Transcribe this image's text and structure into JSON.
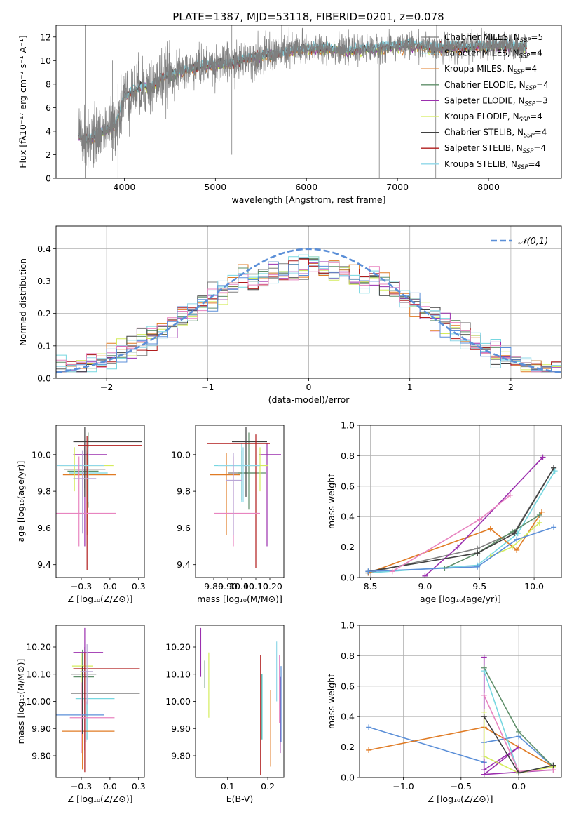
{
  "figure": {
    "suptitle": "PLATE=1387, MJD=53118, FIBERID=0201, z=0.078"
  },
  "models": [
    {
      "name": "Chabrier MILES",
      "nssp": "5",
      "color": "#7f7f7f",
      "lw": 1
    },
    {
      "name": "Salpeter MILES",
      "nssp": "4",
      "color": "#76d7e0",
      "lw": 1
    },
    {
      "name": "Kroupa MILES",
      "nssp": "4",
      "color": "#e07b24",
      "lw": 1
    },
    {
      "name": "Chabrier ELODIE",
      "nssp": "4",
      "color": "#5f8f6a",
      "lw": 1
    },
    {
      "name": "Salpeter ELODIE",
      "nssp": "3",
      "color": "#9b2fae",
      "lw": 1
    },
    {
      "name": "Kroupa ELODIE",
      "nssp": "4",
      "color": "#d4ec5c",
      "lw": 1
    },
    {
      "name": "Chabrier STELIB",
      "nssp": "4",
      "color": "#404040",
      "lw": 1
    },
    {
      "name": "Salpeter STELIB",
      "nssp": "4",
      "color": "#b01c1c",
      "lw": 1
    },
    {
      "name": "Kroupa STELIB",
      "nssp": "4",
      "color": "#8fd7e8",
      "lw": 1
    }
  ],
  "legend_nssp_prefix": "N",
  "legend_nssp_sub": "SSP",
  "chart_data": [
    {
      "id": "spectrum",
      "type": "line",
      "xlabel": "wavelength [Angstrom, rest frame]",
      "ylabel": "Flux [fλ10⁻¹⁷ erg cm⁻² s⁻¹ A⁻¹]",
      "xlim": [
        3250,
        8800
      ],
      "ylim": [
        0,
        13
      ],
      "xticks": [
        4000,
        5000,
        6000,
        7000,
        8000
      ],
      "yticks": [
        0,
        2,
        4,
        6,
        8,
        10,
        12
      ],
      "grid": false,
      "legend": "right",
      "continuum": {
        "x": [
          3500,
          3600,
          3700,
          3800,
          3900,
          4000,
          4100,
          4200,
          4300,
          4400,
          4500,
          4600,
          4800,
          5000,
          5200,
          5400,
          5600,
          5800,
          6000,
          6200,
          6400,
          6600,
          6800,
          7000,
          7200,
          7400,
          7600,
          7800,
          8000,
          8200,
          8400
        ],
        "y": [
          3.6,
          3.3,
          3.8,
          4.2,
          4.5,
          7.0,
          7.4,
          7.8,
          7.8,
          8.5,
          8.8,
          9.0,
          9.5,
          9.7,
          9.8,
          10.3,
          10.5,
          10.8,
          11.0,
          11.1,
          10.8,
          11.0,
          11.0,
          11.3,
          11.3,
          11.1,
          11.2,
          11.2,
          11.3,
          11.2,
          11.2
        ]
      },
      "data_range": [
        3500,
        8420
      ],
      "spikes": [
        {
          "x": 3570,
          "ymin": 0,
          "ymax": 13
        },
        {
          "x": 3870,
          "ymin": 1.5,
          "ymax": 10
        },
        {
          "x": 3930,
          "ymin": 0,
          "ymax": 8
        },
        {
          "x": 5180,
          "ymin": 2,
          "ymax": 13
        },
        {
          "x": 6800,
          "ymin": 0,
          "ymax": 11
        },
        {
          "x": 7420,
          "ymin": 0,
          "ymax": 11
        }
      ]
    },
    {
      "id": "residuals",
      "type": "histogram",
      "xlabel": "(data-model)/error",
      "ylabel": "Normed distribution",
      "xlim": [
        -2.5,
        2.5
      ],
      "ylim": [
        0,
        0.47
      ],
      "xticks": [
        -2,
        -1,
        0,
        1,
        2
      ],
      "yticks": [
        0.0,
        0.1,
        0.2,
        0.3,
        0.4
      ],
      "grid": true,
      "bin_width": 0.1,
      "reference": {
        "label": "𝒩(0,1)",
        "mu": 0,
        "sigma": 1,
        "color": "#5b8fd8"
      },
      "legend": "top-right"
    },
    {
      "id": "age-vs-Z",
      "type": "scatter",
      "xlabel": "Z [log₁₀(Z/Z⊙)]",
      "ylabel": "age  [log₁₀(age/yr)]",
      "xlim": [
        -0.47,
        0.3
      ],
      "ylim": [
        9.33,
        10.16
      ],
      "xticks": [
        -0.25,
        0.0,
        0.25
      ],
      "yticks": [
        9.4,
        9.6,
        9.8,
        10.0
      ],
      "grid": false,
      "points": [
        {
          "model": 0,
          "x": -0.22,
          "y": 9.92,
          "xerr": [
            0.18,
            0.18
          ],
          "yerr": [
            0.1,
            0.12
          ]
        },
        {
          "model": 1,
          "x": -0.2,
          "y": 9.9,
          "xerr": [
            0.16,
            0.18
          ],
          "yerr": [
            0.17,
            0.12
          ]
        },
        {
          "model": 2,
          "x": -0.2,
          "y": 9.89,
          "xerr": [
            0.21,
            0.25
          ],
          "yerr": [
            0.33,
            0.12
          ]
        },
        {
          "model": 3,
          "x": -0.19,
          "y": 9.91,
          "xerr": [
            0.18,
            0.09
          ],
          "yerr": [
            0.2,
            0.21
          ]
        },
        {
          "model": 4,
          "x": -0.22,
          "y": 10.0,
          "xerr": [
            0.1,
            0.19
          ],
          "yerr": [
            0.5,
            0.06
          ]
        },
        {
          "model": 5,
          "x": -0.31,
          "y": 9.94,
          "xerr": [
            0.13,
            0.34
          ],
          "yerr": [
            0.14,
            0.1
          ]
        },
        {
          "model": 6,
          "x": -0.22,
          "y": 10.07,
          "xerr": [
            0.1,
            0.5
          ],
          "yerr": [
            0.3,
            0.08
          ]
        },
        {
          "model": 7,
          "x": -0.2,
          "y": 10.05,
          "xerr": [
            0.08,
            0.48
          ],
          "yerr": [
            0.68,
            0.05
          ]
        },
        {
          "model": 8,
          "x": -0.19,
          "y": 9.94,
          "xerr": [
            0.27,
            0.14
          ],
          "yerr": [
            0.2,
            0.1
          ]
        },
        {
          "model": 9,
          "x": -0.27,
          "y": 9.68,
          "xerr": [
            0.2,
            0.32
          ],
          "yerr": [
            0.18,
            0.31
          ],
          "color": "#e884c0"
        },
        {
          "model": 9,
          "x": -0.24,
          "y": 9.87,
          "xerr": [
            0.08,
            0.12
          ],
          "yerr": [
            0.3,
            0.15
          ],
          "color": "#b9a6d6"
        }
      ]
    },
    {
      "id": "age-vs-mass",
      "type": "scatter",
      "xlabel": "mass [log₁₀(M/M⊙)]",
      "ylabel": "",
      "xlim": [
        9.67,
        10.3
      ],
      "ylim": [
        9.33,
        10.16
      ],
      "xticks": [
        9.8,
        9.9,
        10.0,
        10.1,
        10.2
      ],
      "yticks": [
        9.4,
        9.6,
        9.8,
        10.0
      ],
      "grid": false,
      "points": [
        {
          "model": 0,
          "x": 10.0,
          "y": 9.9,
          "xerr": [
            0.1,
            0.1
          ],
          "yerr": [
            0.15,
            0.12
          ]
        },
        {
          "model": 1,
          "x": 10.0,
          "y": 9.94,
          "xerr": [
            0.2,
            0.12
          ],
          "yerr": [
            0.2,
            0.12
          ]
        },
        {
          "model": 2,
          "x": 9.89,
          "y": 9.89,
          "xerr": [
            0.12,
            0.1
          ],
          "yerr": [
            0.33,
            0.12
          ]
        },
        {
          "model": 3,
          "x": 10.05,
          "y": 9.9,
          "xerr": [
            0.08,
            0.12
          ],
          "yerr": [
            0.2,
            0.22
          ]
        },
        {
          "model": 4,
          "x": 10.18,
          "y": 10.0,
          "xerr": [
            0.06,
            0.1
          ],
          "yerr": [
            0.5,
            0.06
          ]
        },
        {
          "model": 5,
          "x": 10.13,
          "y": 9.94,
          "xerr": [
            0.08,
            0.06
          ],
          "yerr": [
            0.14,
            0.1
          ]
        },
        {
          "model": 6,
          "x": 10.03,
          "y": 10.07,
          "xerr": [
            0.1,
            0.15
          ],
          "yerr": [
            0.3,
            0.08
          ]
        },
        {
          "model": 7,
          "x": 10.1,
          "y": 10.06,
          "xerr": [
            0.35,
            0.1
          ],
          "yerr": [
            0.68,
            0.05
          ]
        },
        {
          "model": 8,
          "x": 10.01,
          "y": 9.94,
          "xerr": [
            0.18,
            0.12
          ],
          "yerr": [
            0.2,
            0.1
          ]
        },
        {
          "model": 9,
          "x": 9.94,
          "y": 9.68,
          "xerr": [
            0.14,
            0.19
          ],
          "yerr": [
            0.18,
            0.31
          ],
          "color": "#e884c0"
        },
        {
          "model": 9,
          "x": 9.94,
          "y": 9.86,
          "xerr": [
            0.05,
            0.06
          ],
          "yerr": [
            0.3,
            0.15
          ],
          "color": "#b9a6d6"
        }
      ]
    },
    {
      "id": "weight-vs-age",
      "type": "line",
      "xlabel": "age  [log₁₀(age/yr)]",
      "ylabel": "mass weight",
      "xlim": [
        8.4,
        10.25
      ],
      "ylim": [
        0.0,
        1.0
      ],
      "xticks": [
        8.5,
        9.0,
        9.5,
        10.0
      ],
      "yticks": [
        0.0,
        0.2,
        0.4,
        0.6,
        0.8,
        1.0
      ],
      "grid": true,
      "series": [
        {
          "model": 0,
          "x": [
            8.48,
            9.48,
            9.82,
            10.18
          ],
          "y": [
            0.03,
            0.19,
            0.3,
            0.72
          ]
        },
        {
          "model": 1,
          "x": [
            8.48,
            9.48,
            9.85,
            10.19
          ],
          "y": [
            0.03,
            0.08,
            0.29,
            0.7
          ]
        },
        {
          "model": 2,
          "x": [
            8.48,
            9.6,
            9.84,
            10.07
          ],
          "y": [
            0.03,
            0.32,
            0.18,
            0.43
          ]
        },
        {
          "model": 3,
          "x": [
            9.18,
            9.48,
            9.8,
            10.05
          ],
          "y": [
            0.06,
            0.16,
            0.3,
            0.41
          ]
        },
        {
          "model": 4,
          "x": [
            9.0,
            9.3,
            10.08
          ],
          "y": [
            0.01,
            0.2,
            0.79
          ]
        },
        {
          "model": 5,
          "x": [
            9.6,
            9.8,
            10.05
          ],
          "y": [
            0.14,
            0.2,
            0.36
          ]
        },
        {
          "model": 6,
          "x": [
            8.48,
            9.48,
            9.82,
            10.18
          ],
          "y": [
            0.04,
            0.16,
            0.29,
            0.72
          ]
        },
        {
          "model": 8,
          "x": [
            8.48,
            9.48,
            9.84,
            10.18
          ],
          "y": [
            0.04,
            0.07,
            0.25,
            0.33
          ],
          "color": "#5b8fd8"
        },
        {
          "model": 9,
          "x": [
            8.7,
            9.5,
            9.78
          ],
          "y": [
            0.04,
            0.38,
            0.54
          ],
          "color": "#e884c0"
        }
      ]
    },
    {
      "id": "mass-vs-Z",
      "type": "scatter",
      "xlabel": "Z [log₁₀(Z/Z⊙)]",
      "ylabel": "mass [log₁₀(M/M⊙)]",
      "xlim": [
        -0.47,
        0.3
      ],
      "ylim": [
        9.72,
        10.28
      ],
      "xticks": [
        -0.25,
        0.0,
        0.25
      ],
      "yticks": [
        9.8,
        9.9,
        10.0,
        10.1,
        10.2
      ],
      "grid": false,
      "points": [
        {
          "model": 0,
          "x": -0.22,
          "y": 10.1,
          "xerr": [
            0.12,
            0.1
          ],
          "yerr": [
            0.1,
            0.1
          ]
        },
        {
          "model": 1,
          "x": -0.2,
          "y": 10.01,
          "xerr": [
            0.1,
            0.24
          ],
          "yerr": [
            0.15,
            0.1
          ]
        },
        {
          "model": 2,
          "x": -0.24,
          "y": 9.89,
          "xerr": [
            0.18,
            0.28
          ],
          "yerr": [
            0.14,
            0.1
          ]
        },
        {
          "model": 3,
          "x": -0.24,
          "y": 10.09,
          "xerr": [
            0.08,
            0.1
          ],
          "yerr": [
            0.12,
            0.1
          ]
        },
        {
          "model": 4,
          "x": -0.22,
          "y": 10.18,
          "xerr": [
            0.1,
            0.16
          ],
          "yerr": [
            0.36,
            0.09
          ]
        },
        {
          "model": 5,
          "x": -0.25,
          "y": 10.13,
          "xerr": [
            0.08,
            0.1
          ],
          "yerr": [
            0.19,
            0.05
          ]
        },
        {
          "model": 6,
          "x": -0.24,
          "y": 10.03,
          "xerr": [
            0.1,
            0.5
          ],
          "yerr": [
            0.15,
            0.1
          ]
        },
        {
          "model": 7,
          "x": -0.22,
          "y": 10.12,
          "xerr": [
            0.1,
            0.48
          ],
          "yerr": [
            0.38,
            0.06
          ]
        },
        {
          "model": 8,
          "x": -0.21,
          "y": 9.95,
          "xerr": [
            0.26,
            0.16
          ],
          "yerr": [
            0.1,
            0.05
          ],
          "color": "#5b8fd8"
        },
        {
          "model": 9,
          "x": -0.25,
          "y": 9.94,
          "xerr": [
            0.1,
            0.29
          ],
          "yerr": [
            0.13,
            0.13
          ],
          "color": "#e884c0"
        },
        {
          "model": 9,
          "x": -0.2,
          "y": 10.11,
          "xerr": [
            0.06,
            0.05
          ],
          "yerr": [
            0.12,
            0.1
          ],
          "color": "#b9a6d6"
        }
      ]
    },
    {
      "id": "mass-vs-EBV",
      "type": "scatter",
      "xlabel": "E(B-V)",
      "ylabel": "",
      "xlim": [
        0.02,
        0.24
      ],
      "ylim": [
        9.72,
        10.28
      ],
      "xticks": [
        0.1,
        0.2
      ],
      "yticks": [
        9.8,
        9.9,
        10.0,
        10.1,
        10.2
      ],
      "grid": false,
      "points": [
        {
          "model": 4,
          "x": 0.033,
          "y": 10.18,
          "yerr": [
            0.09,
            0.09
          ]
        },
        {
          "model": 3,
          "x": 0.043,
          "y": 10.1,
          "yerr": [
            0.05,
            0.05
          ]
        },
        {
          "model": 5,
          "x": 0.053,
          "y": 10.06,
          "yerr": [
            0.12,
            0.12
          ]
        },
        {
          "model": 7,
          "x": 0.182,
          "y": 9.97,
          "yerr": [
            0.24,
            0.2
          ]
        },
        {
          "model": 3,
          "x": 0.184,
          "y": 9.98,
          "yerr": [
            0.12,
            0.12
          ]
        },
        {
          "model": 1,
          "x": 0.186,
          "y": 9.98,
          "yerr": [
            0.12,
            0.12
          ]
        },
        {
          "model": 2,
          "x": 0.207,
          "y": 9.91,
          "yerr": [
            0.15,
            0.13
          ]
        },
        {
          "model": 8,
          "x": 0.222,
          "y": 10.08,
          "yerr": [
            0.08,
            0.14
          ]
        },
        {
          "model": 9,
          "x": 0.229,
          "y": 10.04,
          "yerr": [
            0.12,
            0.13
          ],
          "color": "#e884c0"
        },
        {
          "model": 4,
          "x": 0.231,
          "y": 9.95,
          "yerr": [
            0.14,
            0.14
          ]
        },
        {
          "model": 8,
          "x": 0.233,
          "y": 9.99,
          "yerr": [
            0.14,
            0.14
          ],
          "color": "#5b8fd8"
        }
      ]
    },
    {
      "id": "weight-vs-Z",
      "type": "line",
      "xlabel": "Z [log₁₀(Z/Z⊙)]",
      "ylabel": "mass weight",
      "xlim": [
        -1.38,
        0.37
      ],
      "ylim": [
        0.0,
        1.0
      ],
      "xticks": [
        -1.0,
        -0.5,
        0.0
      ],
      "yticks": [
        0.0,
        0.2,
        0.4,
        0.6,
        0.8,
        1.0
      ],
      "grid": true,
      "series": [
        {
          "model": 8,
          "x": [
            -1.3,
            -0.3,
            -0.3,
            0.0,
            0.3
          ],
          "y": [
            0.33,
            0.1,
            0.23,
            0.27,
            0.07
          ],
          "color": "#5b8fd8"
        },
        {
          "model": 2,
          "x": [
            -1.3,
            -0.3,
            0.3
          ],
          "y": [
            0.18,
            0.33,
            0.07
          ]
        },
        {
          "model": 4,
          "x": [
            -0.3,
            -0.3,
            0.0,
            -0.3,
            0.3
          ],
          "y": [
            0.79,
            0.05,
            0.2,
            0.02,
            0.05
          ]
        },
        {
          "model": 3,
          "x": [
            -0.3,
            0.0,
            0.3
          ],
          "y": [
            0.72,
            0.3,
            0.07
          ]
        },
        {
          "model": 1,
          "x": [
            -0.3,
            0.0,
            0.3
          ],
          "y": [
            0.7,
            0.03,
            0.08
          ]
        },
        {
          "model": 5,
          "x": [
            -0.3,
            -0.3,
            0.0,
            0.3
          ],
          "y": [
            0.43,
            0.14,
            0.03,
            0.07
          ]
        },
        {
          "model": 9,
          "x": [
            -0.3,
            0.0,
            0.3
          ],
          "y": [
            0.54,
            0.04,
            0.05
          ],
          "color": "#e884c0"
        },
        {
          "model": 6,
          "x": [
            -0.3,
            0.0,
            0.3
          ],
          "y": [
            0.4,
            0.03,
            0.08
          ]
        }
      ]
    }
  ]
}
